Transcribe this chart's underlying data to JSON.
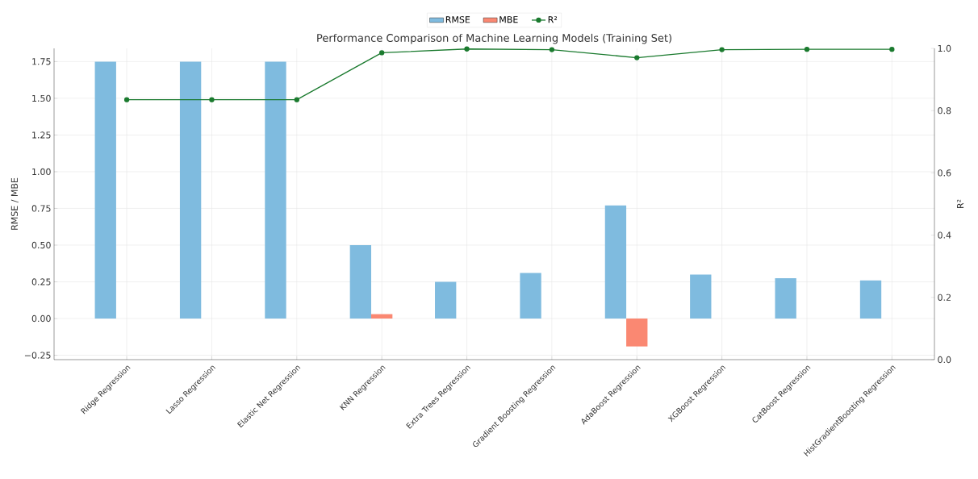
{
  "chart_data": {
    "type": "bar",
    "title": "Performance Comparison of Machine Learning Models (Training Set)",
    "categories": [
      "Ridge Regression",
      "Lasso Regression",
      "Elastic Net Regression",
      "KNN Regression",
      "Extra Trees Regression",
      "Gradient Boosting Regression",
      "AdaBoost Regression",
      "XGBoost Regression",
      "CatBoost Regression",
      "HistGradientBoosting Regression"
    ],
    "ylabel": "RMSE / MBE",
    "y2label": "R²",
    "series": [
      {
        "name": "RMSE",
        "color": "#7fbbdf",
        "values": [
          1.75,
          1.75,
          1.75,
          0.5,
          0.25,
          0.31,
          0.77,
          0.3,
          0.275,
          0.26
        ]
      },
      {
        "name": "MBE",
        "color": "#fa8872",
        "values": [
          0,
          0,
          0,
          0.03,
          0,
          0,
          -0.19,
          0,
          0,
          0
        ]
      },
      {
        "name": "R²",
        "type": "line",
        "axis": "y2",
        "color": "#1a7a2e",
        "values": [
          0.835,
          0.835,
          0.835,
          0.986,
          0.998,
          0.996,
          0.97,
          0.996,
          0.997,
          0.997
        ]
      }
    ],
    "ylim": [
      -0.28,
      1.84
    ],
    "yticks": [
      {
        "value": -0.25,
        "label": "−0.25"
      },
      {
        "value": 0,
        "label": "0.00"
      },
      {
        "value": 0.25,
        "label": "0.25"
      },
      {
        "value": 0.5,
        "label": "0.50"
      },
      {
        "value": 0.75,
        "label": "0.75"
      },
      {
        "value": 1,
        "label": "1.00"
      },
      {
        "value": 1.25,
        "label": "1.25"
      },
      {
        "value": 1.5,
        "label": "1.50"
      },
      {
        "value": 1.75,
        "label": "1.75"
      }
    ],
    "y2lim": [
      0,
      1.0
    ],
    "y2ticks": [
      {
        "value": 0,
        "label": "0.0"
      },
      {
        "value": 0.2,
        "label": "0.2"
      },
      {
        "value": 0.4,
        "label": "0.4"
      },
      {
        "value": 0.6,
        "label": "0.6"
      },
      {
        "value": 0.8,
        "label": "0.8"
      },
      {
        "value": 1.0,
        "label": "1.0"
      }
    ],
    "grid": true,
    "legend": "top",
    "marker": "circle",
    "line_style": "solid"
  }
}
